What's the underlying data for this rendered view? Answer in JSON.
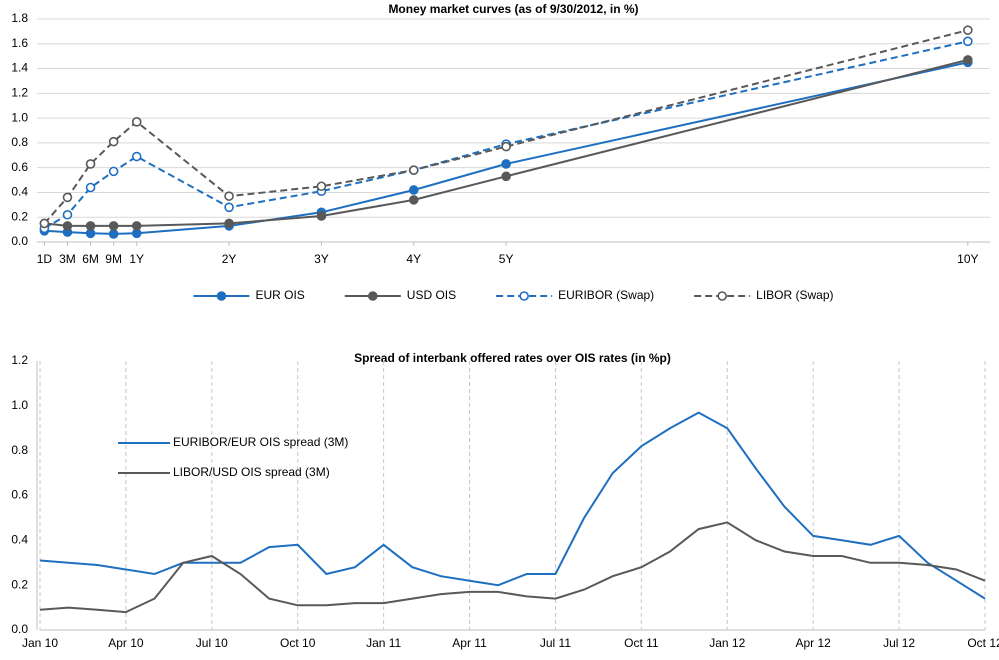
{
  "chart_data": [
    {
      "type": "line",
      "title": "Money market curves (as of 9/30/2012, in %)",
      "x": [
        0,
        0.25,
        0.5,
        0.75,
        1,
        2,
        3,
        4,
        5,
        10
      ],
      "xlim": [
        -0.08,
        10.24
      ],
      "xticks": [
        {
          "value": 0,
          "label": "1D"
        },
        {
          "value": 0.25,
          "label": "3M"
        },
        {
          "value": 0.5,
          "label": "6M"
        },
        {
          "value": 0.75,
          "label": "9M"
        },
        {
          "value": 1,
          "label": "1Y"
        },
        {
          "value": 2,
          "label": "2Y"
        },
        {
          "value": 3,
          "label": "3Y"
        },
        {
          "value": 4,
          "label": "4Y"
        },
        {
          "value": 5,
          "label": "5Y"
        },
        {
          "value": 10,
          "label": "10Y"
        }
      ],
      "ylim": [
        0,
        1.8
      ],
      "yticks": [
        {
          "value": 0,
          "label": "0.0"
        },
        0.2,
        0.4,
        0.6,
        0.8,
        {
          "value": 1,
          "label": "1.0"
        },
        1.2,
        1.4,
        1.6,
        1.8
      ],
      "grid": "y",
      "legend": "bottom",
      "series": [
        {
          "name": "EUR OIS",
          "color": "#1f6fc0",
          "dashed": false,
          "marker": "filled",
          "values": [
            0.09,
            0.08,
            0.07,
            0.065,
            0.07,
            0.13,
            0.24,
            0.42,
            0.63,
            1.45
          ]
        },
        {
          "name": "USD OIS",
          "color": "#595959",
          "dashed": false,
          "marker": "filled",
          "values": [
            0.15,
            0.13,
            0.13,
            0.13,
            0.13,
            0.15,
            0.21,
            0.34,
            0.53,
            1.47
          ]
        },
        {
          "name": "EURIBOR (Swap)",
          "color": "#1f6fc0",
          "dashed": true,
          "marker": "open",
          "values": [
            0.11,
            0.22,
            0.44,
            0.57,
            0.69,
            0.28,
            0.41,
            0.58,
            0.79,
            1.62
          ]
        },
        {
          "name": "LIBOR (Swap)",
          "color": "#595959",
          "dashed": true,
          "marker": "open",
          "values": [
            0.15,
            0.36,
            0.63,
            0.81,
            0.97,
            0.37,
            0.45,
            0.58,
            0.77,
            1.71
          ]
        }
      ]
    },
    {
      "type": "line",
      "title": "Spread of interbank offered rates over OIS rates (in %p)",
      "x": [
        "2010-01",
        "2010-02",
        "2010-03",
        "2010-04",
        "2010-05",
        "2010-06",
        "2010-07",
        "2010-08",
        "2010-09",
        "2010-10",
        "2010-11",
        "2010-12",
        "2011-01",
        "2011-02",
        "2011-03",
        "2011-04",
        "2011-05",
        "2011-06",
        "2011-07",
        "2011-08",
        "2011-09",
        "2011-10",
        "2011-11",
        "2011-12",
        "2012-01",
        "2012-02",
        "2012-03",
        "2012-04",
        "2012-05",
        "2012-06",
        "2012-07",
        "2012-08",
        "2012-09",
        "2012-10"
      ],
      "xlim": [
        "2010-01",
        "2012-10"
      ],
      "xticks": [
        {
          "value": "2010-01",
          "label": "Jan 10"
        },
        {
          "value": "2010-04",
          "label": "Apr 10"
        },
        {
          "value": "2010-07",
          "label": "Jul 10"
        },
        {
          "value": "2010-10",
          "label": "Oct 10"
        },
        {
          "value": "2011-01",
          "label": "Jan 11"
        },
        {
          "value": "2011-04",
          "label": "Apr 11"
        },
        {
          "value": "2011-07",
          "label": "Jul 11"
        },
        {
          "value": "2011-10",
          "label": "Oct 11"
        },
        {
          "value": "2012-01",
          "label": "Jan 12"
        },
        {
          "value": "2012-04",
          "label": "Apr 12"
        },
        {
          "value": "2012-07",
          "label": "Jul 12"
        },
        {
          "value": "2012-10",
          "label": "Oct 12"
        }
      ],
      "ylim": [
        0,
        1.2
      ],
      "yticks": [
        {
          "value": 0,
          "label": "0.0"
        },
        0.2,
        0.4,
        0.6,
        0.8,
        {
          "value": 1,
          "label": "1.0"
        },
        1.2
      ],
      "grid": "x",
      "legend": "upper left",
      "series": [
        {
          "name": "EURIBOR/EUR OIS spread (3M)",
          "color": "#1f6fc0",
          "values": [
            0.31,
            0.3,
            0.29,
            0.27,
            0.25,
            0.3,
            0.3,
            0.3,
            0.37,
            0.38,
            0.25,
            0.28,
            0.38,
            0.28,
            0.24,
            0.22,
            0.2,
            0.25,
            0.25,
            0.5,
            0.7,
            0.82,
            0.9,
            0.97,
            0.9,
            0.72,
            0.55,
            0.42,
            0.4,
            0.38,
            0.42,
            0.3,
            0.22,
            0.14
          ]
        },
        {
          "name": "LIBOR/USD OIS spread (3M)",
          "color": "#595959",
          "values": [
            0.09,
            0.1,
            0.09,
            0.08,
            0.14,
            0.3,
            0.33,
            0.25,
            0.14,
            0.11,
            0.11,
            0.12,
            0.12,
            0.14,
            0.16,
            0.17,
            0.17,
            0.15,
            0.14,
            0.18,
            0.24,
            0.28,
            0.35,
            0.45,
            0.48,
            0.4,
            0.35,
            0.33,
            0.33,
            0.3,
            0.3,
            0.29,
            0.27,
            0.22
          ]
        }
      ]
    }
  ]
}
